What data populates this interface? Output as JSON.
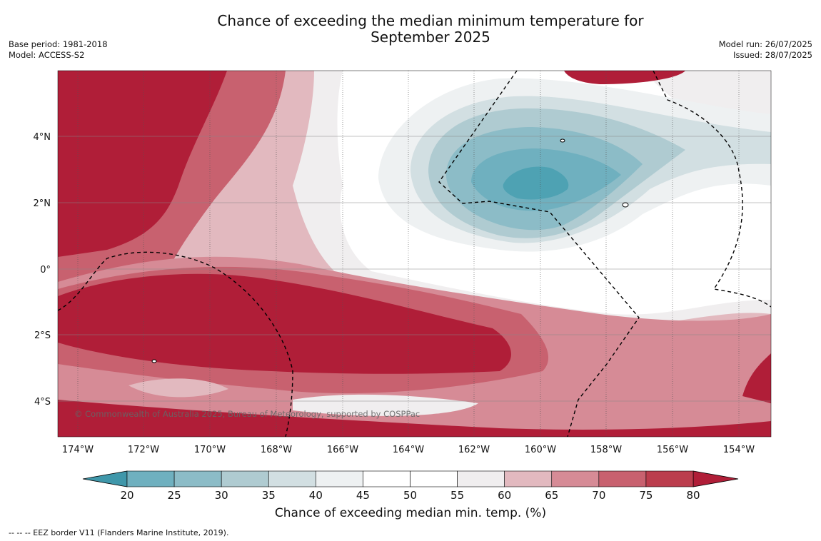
{
  "title_line1": "Chance of exceeding the median minimum temperature for",
  "title_line2": "September 2025",
  "meta_left": [
    "Base period: 1981-2018",
    "Model: ACCESS-S2"
  ],
  "meta_right": [
    "Model run: 26/07/2025",
    "Issued: 28/07/2025"
  ],
  "watermark": "© Commonwealth of Australia 2025, Bureau of Meteorology, supported by COSPPac",
  "lon_ticks": [
    "174°W",
    "172°W",
    "170°W",
    "168°W",
    "166°W",
    "164°W",
    "162°W",
    "160°W",
    "158°W",
    "156°W",
    "154°W"
  ],
  "lat_ticks": [
    "4°N",
    "2°N",
    "0°",
    "2°S",
    "4°S"
  ],
  "colorbar": {
    "ticks": [
      "20",
      "25",
      "30",
      "35",
      "40",
      "45",
      "50",
      "55",
      "60",
      "65",
      "70",
      "75",
      "80"
    ],
    "colors": [
      "#4ea2b3",
      "#6fb0bf",
      "#8cbcc7",
      "#afcbd1",
      "#d2dfe2",
      "#eef1f2",
      "#ffffff",
      "#ffffff",
      "#f0eeef",
      "#e2b9bf",
      "#d68b96",
      "#c8616f",
      "#bb3d4d"
    ],
    "min_extend_color": "#3f97aa",
    "max_extend_color": "#b01e38",
    "label": "Chance of exceeding median min. temp. (%)"
  },
  "footnote": "--  --  -- EEZ border V11 (Flanders Marine Institute, 2019)."
}
